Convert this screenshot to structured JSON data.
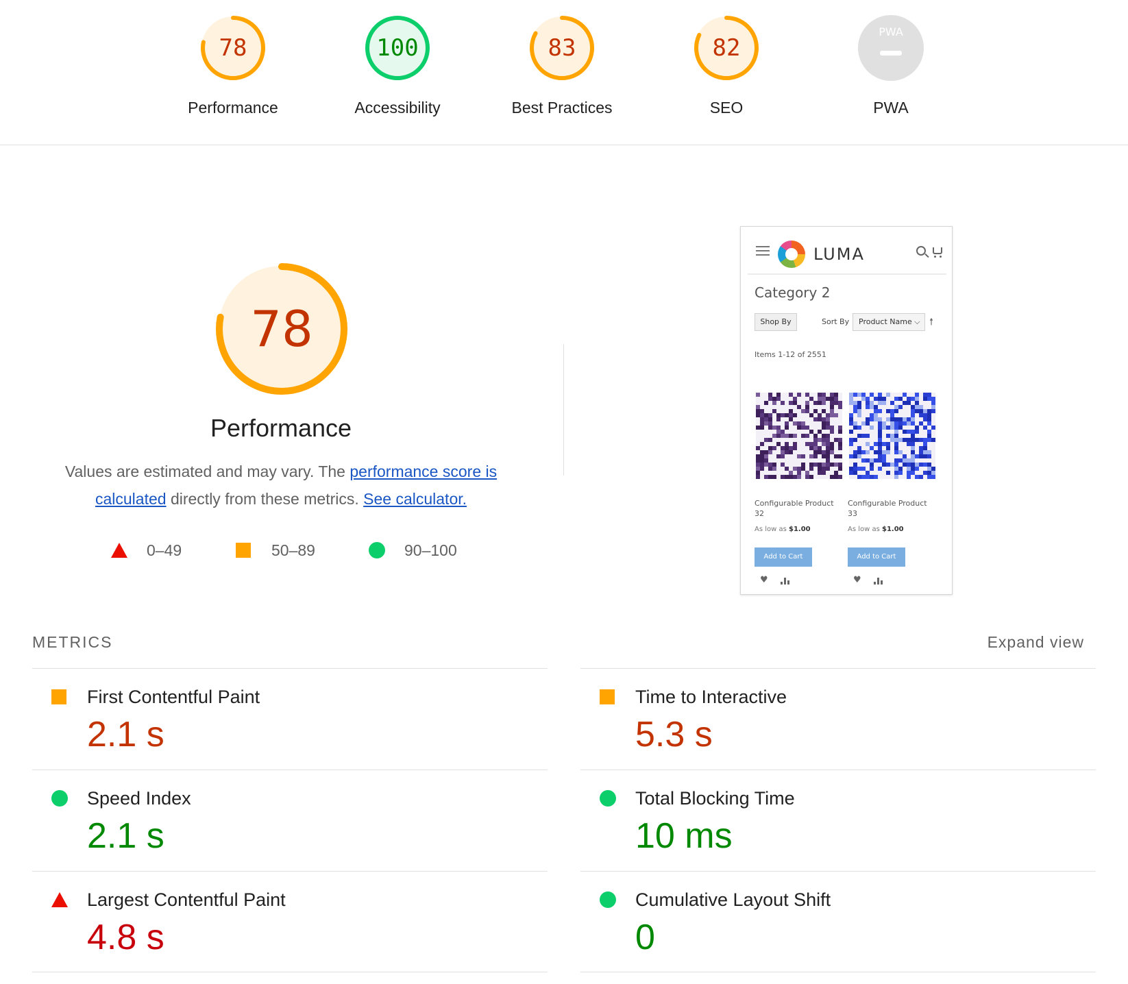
{
  "categories": [
    {
      "score": "78",
      "label": "Performance",
      "value": 0.78,
      "rating": "average"
    },
    {
      "score": "100",
      "label": "Accessibility",
      "value": 1.0,
      "rating": "pass"
    },
    {
      "score": "83",
      "label": "Best Practices",
      "value": 0.83,
      "rating": "average"
    },
    {
      "score": "82",
      "label": "SEO",
      "value": 0.82,
      "rating": "average"
    },
    {
      "score": "",
      "badge_text": "PWA",
      "label": "PWA",
      "value": null,
      "rating": "na"
    }
  ],
  "performance": {
    "score": "78",
    "value": 0.78,
    "title": "Performance",
    "desc_1": "Values are estimated and may vary. The ",
    "link_score": "performance score is calculated",
    "desc_2": " directly from these metrics. ",
    "link_calculator": "See calculator."
  },
  "legend": [
    {
      "range": "0–49",
      "shape": "triangle"
    },
    {
      "range": "50–89",
      "shape": "square"
    },
    {
      "range": "90–100",
      "shape": "circle"
    }
  ],
  "thumbnail": {
    "brand": "LUMA",
    "category": "Category 2",
    "shop_by": "Shop By",
    "sort_by_label": "Sort By",
    "sort_by_value": "Product Name ⌵",
    "sort_arrow": "🠕",
    "items": "Items 1-12 of 2551",
    "products": [
      {
        "name": "Configurable Product 32",
        "price_prefix": "As low as ",
        "price": "$1.00",
        "button": "Add to Cart"
      },
      {
        "name": "Configurable Product 33",
        "price_prefix": "As low as ",
        "price": "$1.00",
        "button": "Add to Cart"
      }
    ]
  },
  "metrics": {
    "header": "METRICS",
    "expand": "Expand view",
    "items": [
      {
        "title": "First Contentful Paint",
        "value": "2.1 s",
        "rating": "average"
      },
      {
        "title": "Time to Interactive",
        "value": "5.3 s",
        "rating": "average"
      },
      {
        "title": "Speed Index",
        "value": "2.1 s",
        "rating": "pass"
      },
      {
        "title": "Total Blocking Time",
        "value": "10 ms",
        "rating": "pass"
      },
      {
        "title": "Largest Contentful Paint",
        "value": "4.8 s",
        "rating": "fail"
      },
      {
        "title": "Cumulative Layout Shift",
        "value": "0",
        "rating": "pass"
      }
    ]
  },
  "colors": {
    "average_ring": "#ffa400",
    "average_fill": "#fff3e0",
    "average_text": "#c33300",
    "pass_ring": "#0cce6b",
    "pass_fill": "#e5f9ee",
    "pass_text": "#008800",
    "fail": "#eb0f00",
    "fail_text": "#c7000b",
    "na": "#e0e0e0"
  }
}
